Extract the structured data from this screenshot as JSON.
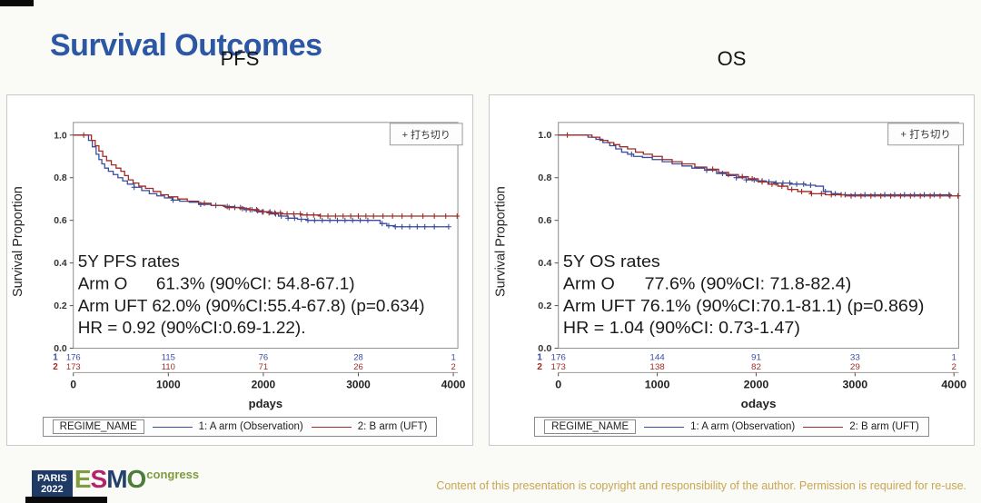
{
  "page": {
    "title": "Survival Outcomes",
    "footer_copyright": "Content of this presentation is copyright and responsibility of the author. Permission is required for re-use.",
    "logo": {
      "paris": "PARIS",
      "year": "2022",
      "esmo_e": "E",
      "esmo_s": "S",
      "esmo_m": "M",
      "esmo_o": "O",
      "congress": "congress"
    }
  },
  "colors": {
    "title_blue": "#2b57a5",
    "arm1_blue": "#3a4d9f",
    "arm2_red": "#9e2d28",
    "copyright_gold": "#c8a653",
    "esmo_e": "#7f9c3f",
    "esmo_s": "#b1246a",
    "esmo_m": "#24406e",
    "esmo_o": "#4e7c3a"
  },
  "chart_data": [
    {
      "type": "line",
      "variant": "kaplan-meier-step",
      "title": "PFS",
      "ylabel": "Survival Proportion",
      "xlabel": "pdays",
      "xlim": [
        0,
        4050
      ],
      "ylim": [
        0.0,
        1.0
      ],
      "xticks": [
        0,
        1000,
        2000,
        3000,
        4000
      ],
      "yticks": [
        "1.0",
        "0.8",
        "0.6",
        "0.4",
        "0.2",
        "0.0"
      ],
      "grid": false,
      "censor_legend": "+ 打ち切り",
      "annotation": [
        "5Y PFS rates",
        "Arm O      61.3% (90%CI: 54.8-67.1)",
        "Arm UFT 62.0% (90%CI:55.4-67.8) (p=0.634)",
        "HR = 0.92 (90%CI:0.69-1.22)."
      ],
      "series": [
        {
          "name": "1: A arm (Observation)",
          "color": "#3a4d9f",
          "steps": [
            [
              0,
              1.0
            ],
            [
              130,
              1.0
            ],
            [
              160,
              0.975
            ],
            [
              200,
              0.945
            ],
            [
              240,
              0.91
            ],
            [
              270,
              0.885
            ],
            [
              300,
              0.865
            ],
            [
              330,
              0.845
            ],
            [
              370,
              0.83
            ],
            [
              420,
              0.815
            ],
            [
              470,
              0.8
            ],
            [
              520,
              0.785
            ],
            [
              570,
              0.77
            ],
            [
              640,
              0.755
            ],
            [
              720,
              0.74
            ],
            [
              800,
              0.725
            ],
            [
              880,
              0.715
            ],
            [
              960,
              0.705
            ],
            [
              1040,
              0.695
            ],
            [
              1120,
              0.69
            ],
            [
              1220,
              0.685
            ],
            [
              1320,
              0.675
            ],
            [
              1450,
              0.67
            ],
            [
              1580,
              0.665
            ],
            [
              1700,
              0.66
            ],
            [
              1800,
              0.65
            ],
            [
              1900,
              0.645
            ],
            [
              2000,
              0.64
            ],
            [
              2080,
              0.63
            ],
            [
              2160,
              0.62
            ],
            [
              2260,
              0.61
            ],
            [
              2360,
              0.605
            ],
            [
              2460,
              0.6
            ],
            [
              3150,
              0.6
            ],
            [
              3230,
              0.585
            ],
            [
              3300,
              0.575
            ],
            [
              3380,
              0.57
            ],
            [
              3950,
              0.57
            ]
          ],
          "censors": [
            640,
            1050,
            1340,
            1500,
            1620,
            1700,
            1760,
            1820,
            1880,
            1940,
            2000,
            2070,
            2130,
            2190,
            2260,
            2330,
            2400,
            2470,
            2540,
            2620,
            2700,
            2780,
            2860,
            2940,
            3020,
            3100,
            3250,
            3320,
            3390,
            3460,
            3540,
            3620,
            3700,
            3800,
            3950
          ]
        },
        {
          "name": "2: B arm (UFT)",
          "color": "#9e2d28",
          "steps": [
            [
              0,
              1.0
            ],
            [
              150,
              1.0
            ],
            [
              190,
              0.975
            ],
            [
              230,
              0.95
            ],
            [
              270,
              0.925
            ],
            [
              310,
              0.9
            ],
            [
              350,
              0.88
            ],
            [
              400,
              0.86
            ],
            [
              450,
              0.845
            ],
            [
              500,
              0.83
            ],
            [
              540,
              0.81
            ],
            [
              580,
              0.79
            ],
            [
              630,
              0.775
            ],
            [
              690,
              0.76
            ],
            [
              760,
              0.75
            ],
            [
              840,
              0.735
            ],
            [
              920,
              0.72
            ],
            [
              1000,
              0.71
            ],
            [
              1100,
              0.7
            ],
            [
              1200,
              0.69
            ],
            [
              1320,
              0.68
            ],
            [
              1450,
              0.67
            ],
            [
              1600,
              0.66
            ],
            [
              1750,
              0.655
            ],
            [
              1850,
              0.65
            ],
            [
              1950,
              0.64
            ],
            [
              2050,
              0.635
            ],
            [
              2200,
              0.63
            ],
            [
              2400,
              0.625
            ],
            [
              2600,
              0.62
            ],
            [
              4040,
              0.62
            ]
          ],
          "censors": [
            110,
            1380,
            1640,
            1780,
            1860,
            1930,
            1990,
            2060,
            2120,
            2180,
            2250,
            2320,
            2390,
            2460,
            2530,
            2600,
            2680,
            2760,
            2840,
            2920,
            3000,
            3080,
            3160,
            3260,
            3360,
            3460,
            3560,
            3680,
            3800,
            3920,
            4040
          ]
        }
      ],
      "at_risk": {
        "positions": [
          0,
          1000,
          2000,
          3000,
          4000
        ],
        "rows": [
          {
            "label": "1",
            "color": "#3a4d9f",
            "values": [
              "176",
              "115",
              "76",
              "28",
              "1"
            ]
          },
          {
            "label": "2",
            "color": "#9e2d28",
            "values": [
              "173",
              "110",
              "71",
              "26",
              "2"
            ]
          }
        ]
      },
      "legend": {
        "title": "REGIME_NAME",
        "entries": [
          {
            "label": "1: A arm (Observation)",
            "color": "#3a4d9f"
          },
          {
            "label": "2: B arm (UFT)",
            "color": "#9e2d28"
          }
        ]
      }
    },
    {
      "type": "line",
      "variant": "kaplan-meier-step",
      "title": "OS",
      "ylabel": "Survival Proportion",
      "xlabel": "odays",
      "xlim": [
        0,
        4050
      ],
      "ylim": [
        0.0,
        1.0
      ],
      "xticks": [
        0,
        1000,
        2000,
        3000,
        4000
      ],
      "yticks": [
        "1.0",
        "0.8",
        "0.6",
        "0.4",
        "0.2",
        "0.0"
      ],
      "grid": false,
      "censor_legend": "+ 打ち切り",
      "annotation": [
        "5Y OS rates",
        "Arm O      77.6% (90%CI: 71.8-82.4)",
        "Arm UFT 76.1% (90%CI:70.1-81.1) (p=0.869)",
        "HR = 1.04 (90%CI: 0.73-1.47)"
      ],
      "series": [
        {
          "name": "1: A arm (Observation)",
          "color": "#3a4d9f",
          "steps": [
            [
              0,
              1.0
            ],
            [
              230,
              1.0
            ],
            [
              300,
              0.99
            ],
            [
              380,
              0.98
            ],
            [
              450,
              0.965
            ],
            [
              520,
              0.95
            ],
            [
              580,
              0.935
            ],
            [
              640,
              0.92
            ],
            [
              700,
              0.91
            ],
            [
              760,
              0.9
            ],
            [
              850,
              0.895
            ],
            [
              950,
              0.885
            ],
            [
              1050,
              0.875
            ],
            [
              1150,
              0.865
            ],
            [
              1250,
              0.855
            ],
            [
              1350,
              0.845
            ],
            [
              1480,
              0.835
            ],
            [
              1600,
              0.82
            ],
            [
              1700,
              0.81
            ],
            [
              1800,
              0.8
            ],
            [
              1900,
              0.79
            ],
            [
              2000,
              0.785
            ],
            [
              2100,
              0.78
            ],
            [
              2200,
              0.775
            ],
            [
              2350,
              0.77
            ],
            [
              2500,
              0.765
            ],
            [
              2600,
              0.76
            ],
            [
              2680,
              0.735
            ],
            [
              2760,
              0.725
            ],
            [
              2850,
              0.72
            ],
            [
              3950,
              0.72
            ]
          ],
          "censors": [
            740,
            1500,
            1660,
            1800,
            1900,
            1980,
            2060,
            2130,
            2200,
            2270,
            2340,
            2410,
            2480,
            2550,
            2700,
            2800,
            2900,
            3000,
            3100,
            3200,
            3300,
            3400,
            3500,
            3600,
            3700,
            3800,
            3950
          ]
        },
        {
          "name": "2: B arm (UFT)",
          "color": "#9e2d28",
          "steps": [
            [
              0,
              1.0
            ],
            [
              260,
              1.0
            ],
            [
              340,
              0.99
            ],
            [
              420,
              0.975
            ],
            [
              500,
              0.965
            ],
            [
              560,
              0.955
            ],
            [
              620,
              0.945
            ],
            [
              700,
              0.935
            ],
            [
              780,
              0.92
            ],
            [
              860,
              0.91
            ],
            [
              950,
              0.9
            ],
            [
              1050,
              0.885
            ],
            [
              1150,
              0.875
            ],
            [
              1250,
              0.865
            ],
            [
              1380,
              0.85
            ],
            [
              1500,
              0.84
            ],
            [
              1620,
              0.825
            ],
            [
              1720,
              0.815
            ],
            [
              1820,
              0.805
            ],
            [
              1920,
              0.795
            ],
            [
              2020,
              0.78
            ],
            [
              2120,
              0.77
            ],
            [
              2220,
              0.76
            ],
            [
              2320,
              0.745
            ],
            [
              2420,
              0.735
            ],
            [
              2550,
              0.725
            ],
            [
              2700,
              0.72
            ],
            [
              2900,
              0.715
            ],
            [
              4040,
              0.715
            ]
          ],
          "censors": [
            90,
            1560,
            1720,
            1860,
            1960,
            2060,
            2160,
            2260,
            2360,
            2460,
            2560,
            2660,
            2760,
            2860,
            2960,
            3060,
            3160,
            3260,
            3360,
            3460,
            3560,
            3660,
            3760,
            3860,
            3960,
            4040
          ]
        }
      ],
      "at_risk": {
        "positions": [
          0,
          1000,
          2000,
          3000,
          4000
        ],
        "rows": [
          {
            "label": "1",
            "color": "#3a4d9f",
            "values": [
              "176",
              "144",
              "91",
              "33",
              "1"
            ]
          },
          {
            "label": "2",
            "color": "#9e2d28",
            "values": [
              "173",
              "138",
              "82",
              "29",
              "2"
            ]
          }
        ]
      },
      "legend": {
        "title": "REGIME_NAME",
        "entries": [
          {
            "label": "1: A arm (Observation)",
            "color": "#3a4d9f"
          },
          {
            "label": "2: B arm (UFT)",
            "color": "#9e2d28"
          }
        ]
      }
    }
  ]
}
